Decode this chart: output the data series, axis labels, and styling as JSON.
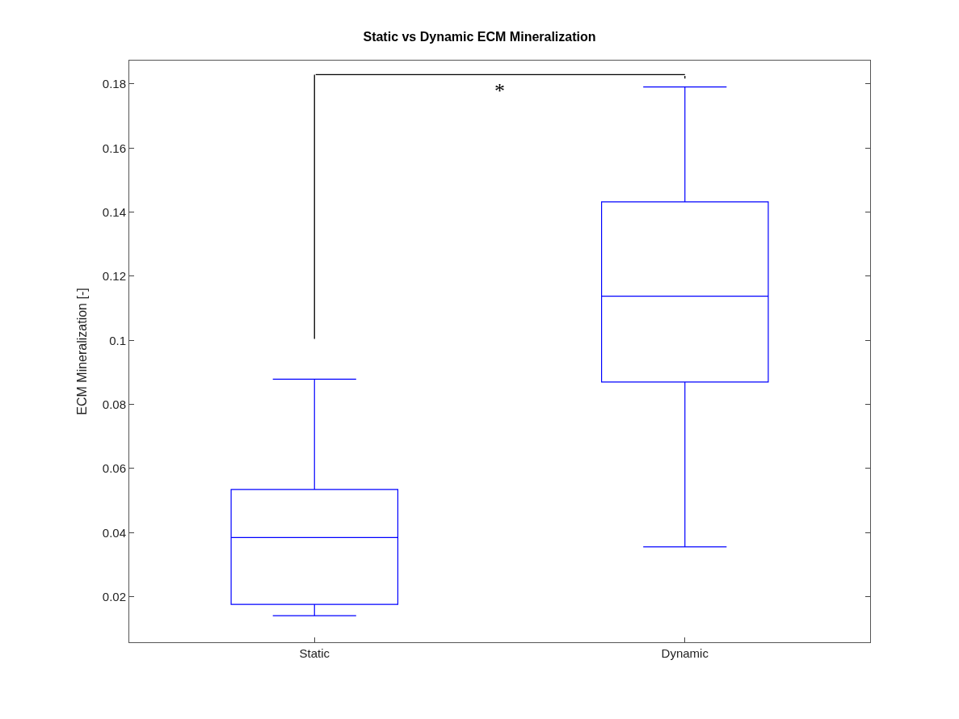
{
  "chart_data": {
    "type": "box",
    "title": "Static vs Dynamic ECM Mineralization",
    "ylabel": "ECM Mineralization [-]",
    "categories": [
      "Static",
      "Dynamic"
    ],
    "boxes": [
      {
        "low": 0.0141,
        "q1": 0.0176,
        "median": 0.0385,
        "q3": 0.0535,
        "high": 0.0879
      },
      {
        "low": 0.0356,
        "q1": 0.087,
        "median": 0.1138,
        "q3": 0.1432,
        "high": 0.1791
      }
    ],
    "color": "#0000ff",
    "ylim": [
      0.0058,
      0.1873
    ],
    "yticks": [
      0.02,
      0.04,
      0.06,
      0.08,
      0.1,
      0.12,
      0.14,
      0.16,
      0.18
    ],
    "annotations": [
      "*"
    ]
  }
}
